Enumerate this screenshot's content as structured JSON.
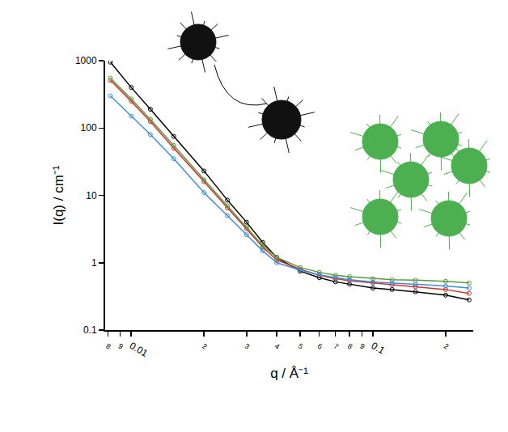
{
  "chart_data": {
    "type": "line",
    "x_label": "q / Å⁻¹",
    "y_label": "I(q) / cm⁻¹",
    "log": true,
    "grid": false,
    "marker": "circle-open",
    "line_style": "solid",
    "x": [
      0.0082,
      0.01,
      0.012,
      0.015,
      0.02,
      0.025,
      0.03,
      0.035,
      0.04,
      0.05,
      0.06,
      0.07,
      0.08,
      0.1,
      0.12,
      0.15,
      0.2,
      0.25
    ],
    "series": [
      {
        "color": "#000000",
        "values": [
          950,
          400,
          190,
          75,
          23,
          8.5,
          4,
          2,
          1.2,
          0.75,
          0.6,
          0.52,
          0.48,
          0.42,
          0.4,
          0.37,
          0.33,
          0.28
        ]
      },
      {
        "color": "#d0312d",
        "values": [
          510,
          250,
          125,
          50,
          16,
          6.5,
          3.2,
          1.7,
          1.1,
          0.8,
          0.65,
          0.58,
          0.54,
          0.5,
          0.47,
          0.44,
          0.4,
          0.35
        ]
      },
      {
        "color": "#5a9a3c",
        "values": [
          550,
          270,
          135,
          55,
          17,
          7,
          3.4,
          1.8,
          1.2,
          0.85,
          0.72,
          0.65,
          0.62,
          0.58,
          0.56,
          0.55,
          0.53,
          0.5
        ]
      },
      {
        "color": "#3f8fd8",
        "values": [
          300,
          150,
          80,
          35,
          11,
          5,
          2.6,
          1.5,
          1.0,
          0.78,
          0.66,
          0.6,
          0.56,
          0.52,
          0.5,
          0.48,
          0.45,
          0.42
        ]
      }
    ],
    "xlim": [
      0.0078,
      0.26
    ],
    "xticks": [
      {
        "value": 0.008,
        "label": "8"
      },
      {
        "value": 0.009,
        "label": "9"
      },
      0.01,
      {
        "value": 0.02,
        "label": "2"
      },
      {
        "value": 0.03,
        "label": "3"
      },
      {
        "value": 0.04,
        "label": "4"
      },
      {
        "value": 0.05,
        "label": "5"
      },
      {
        "value": 0.06,
        "label": "6"
      },
      {
        "value": 0.07,
        "label": "7"
      },
      {
        "value": 0.08,
        "label": "8"
      },
      {
        "value": 0.09,
        "label": "9"
      },
      0.1,
      {
        "value": 0.2,
        "label": "2"
      }
    ],
    "ylim": [
      0.1,
      1000
    ],
    "yticks": [
      0.1,
      1,
      10,
      100,
      1000
    ]
  }
}
